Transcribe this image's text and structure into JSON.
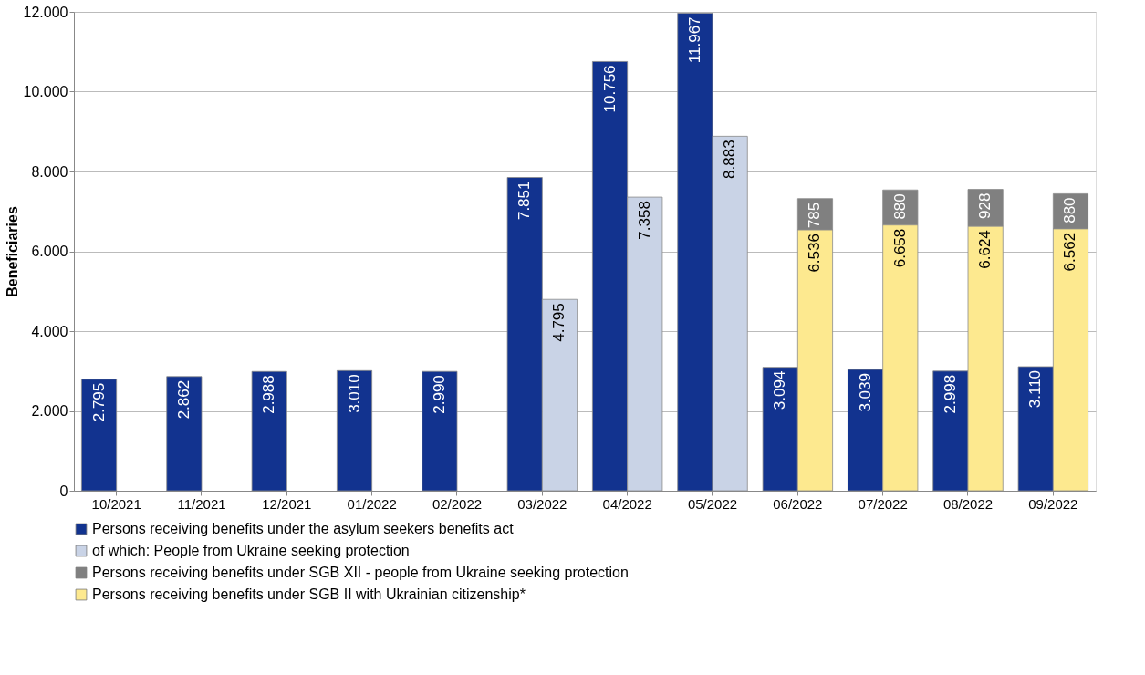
{
  "chart_data": {
    "type": "bar",
    "ylabel": "Beneficiaries",
    "categories": [
      "10/2021",
      "11/2021",
      "12/2021",
      "01/2022",
      "02/2022",
      "03/2022",
      "04/2022",
      "05/2022",
      "06/2022",
      "07/2022",
      "08/2022",
      "09/2022"
    ],
    "series": [
      {
        "name": "Persons receiving benefits under the asylum seekers benefits act",
        "color": "#12338f",
        "values": [
          2795,
          2862,
          2988,
          3010,
          2990,
          7851,
          10756,
          11967,
          3094,
          3039,
          2998,
          3110
        ],
        "value_labels": [
          "2.795",
          "2.862",
          "2.988",
          "3.010",
          "2.990",
          "7.851",
          "10.756",
          "11.967",
          "3.094",
          "3.039",
          "2.998",
          "3.110"
        ]
      },
      {
        "name": "of which: People from Ukraine seeking protection",
        "color": "#c9d3e6",
        "values": [
          null,
          null,
          null,
          null,
          null,
          4795,
          7358,
          8883,
          null,
          null,
          null,
          null
        ],
        "value_labels": [
          null,
          null,
          null,
          null,
          null,
          "4.795",
          "7.358",
          "8.883",
          null,
          null,
          null,
          null
        ]
      },
      {
        "name": "Persons receiving benefits under SGB XII - people from Ukraine seeking protection",
        "color": "#808080",
        "values": [
          null,
          null,
          null,
          null,
          null,
          null,
          null,
          null,
          785,
          880,
          928,
          880
        ],
        "base": [
          null,
          null,
          null,
          null,
          null,
          null,
          null,
          null,
          6536,
          6658,
          6624,
          6562
        ],
        "value_labels": [
          null,
          null,
          null,
          null,
          null,
          null,
          null,
          null,
          "785",
          "880",
          "928",
          "880"
        ]
      },
      {
        "name": "Persons receiving benefits under SGB II with Ukrainian citizenship*",
        "color": "#fde98f",
        "values": [
          null,
          null,
          null,
          null,
          null,
          null,
          null,
          null,
          6536,
          6658,
          6624,
          6562
        ],
        "value_labels": [
          null,
          null,
          null,
          null,
          null,
          null,
          null,
          null,
          "6.536",
          "6.658",
          "6.624",
          "6.562"
        ]
      }
    ],
    "ylim": [
      0,
      12000
    ],
    "yticks": [
      {
        "value": 0,
        "label": "0"
      },
      {
        "value": 2000,
        "label": "2.000"
      },
      {
        "value": 4000,
        "label": "4.000"
      },
      {
        "value": 6000,
        "label": "6.000"
      },
      {
        "value": 8000,
        "label": "8.000"
      },
      {
        "value": 10000,
        "label": "10.000"
      },
      {
        "value": 12000,
        "label": "12.000"
      }
    ],
    "grid": "y",
    "legend": "bottom"
  }
}
